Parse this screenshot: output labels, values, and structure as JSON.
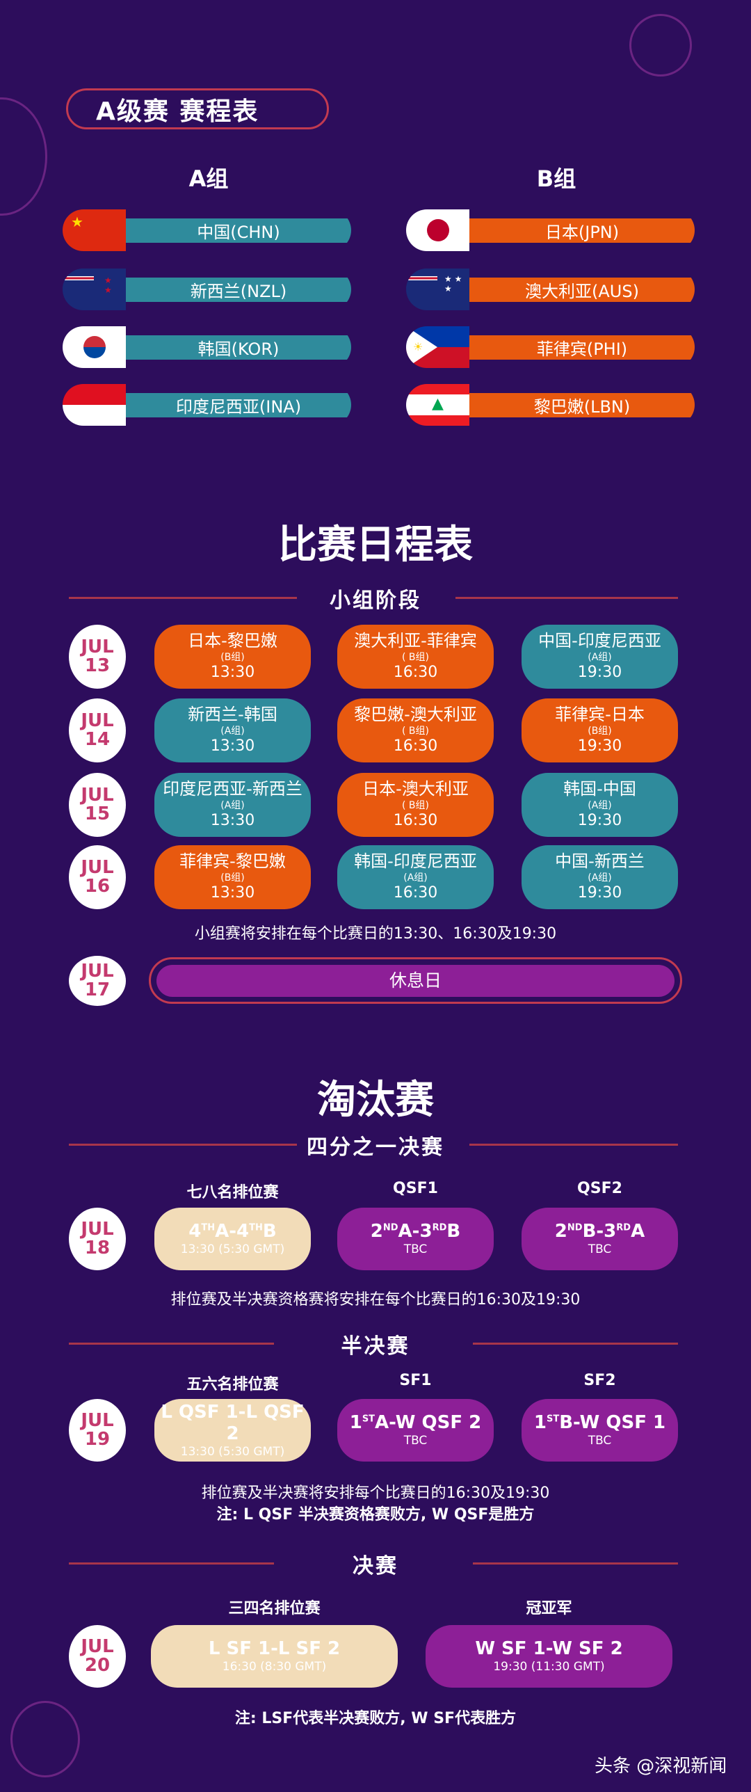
{
  "title": "A级赛 赛程表",
  "groups": {
    "a_label": "A组",
    "b_label": "B组",
    "a": [
      {
        "name": "中国(CHN)",
        "flag": "china-flag"
      },
      {
        "name": "新西兰(NZL)",
        "flag": "new-zealand-flag"
      },
      {
        "name": "韩国(KOR)",
        "flag": "korea-flag"
      },
      {
        "name": "印度尼西亚(INA)",
        "flag": "indonesia-flag"
      }
    ],
    "b": [
      {
        "name": "日本(JPN)",
        "flag": "japan-flag"
      },
      {
        "name": "澳大利亚(AUS)",
        "flag": "australia-flag"
      },
      {
        "name": "菲律宾(PHI)",
        "flag": "philippines-flag"
      },
      {
        "name": "黎巴嫩(LBN)",
        "flag": "lebanon-flag"
      }
    ]
  },
  "schedule_title": "比赛日程表",
  "group_stage": {
    "title": "小组阶段",
    "days": [
      {
        "month": "JUL",
        "day": "13",
        "matches": [
          {
            "teams": "日本-黎巴嫩",
            "group": "(B组)",
            "time": "13:30",
            "color": "orange"
          },
          {
            "teams": "澳大利亚-菲律宾",
            "group": "( B组)",
            "time": "16:30",
            "color": "orange"
          },
          {
            "teams": "中国-印度尼西亚",
            "group": "(A组)",
            "time": "19:30",
            "color": "teal"
          }
        ]
      },
      {
        "month": "JUL",
        "day": "14",
        "matches": [
          {
            "teams": "新西兰-韩国",
            "group": "(A组)",
            "time": "13:30",
            "color": "teal"
          },
          {
            "teams": "黎巴嫩-澳大利亚",
            "group": "( B组)",
            "time": "16:30",
            "color": "orange"
          },
          {
            "teams": "菲律宾-日本",
            "group": "(B组)",
            "time": "19:30",
            "color": "orange"
          }
        ]
      },
      {
        "month": "JUL",
        "day": "15",
        "matches": [
          {
            "teams": "印度尼西亚-新西兰",
            "group": "(A组)",
            "time": "13:30",
            "color": "teal"
          },
          {
            "teams": "日本-澳大利亚",
            "group": "( B组)",
            "time": "16:30",
            "color": "orange"
          },
          {
            "teams": "韩国-中国",
            "group": "(A组)",
            "time": "19:30",
            "color": "teal"
          }
        ]
      },
      {
        "month": "JUL",
        "day": "16",
        "matches": [
          {
            "teams": "菲律宾-黎巴嫩",
            "group": "(B组)",
            "time": "13:30",
            "color": "orange"
          },
          {
            "teams": "韩国-印度尼西亚",
            "group": "(A组)",
            "time": "16:30",
            "color": "teal"
          },
          {
            "teams": "中国-新西兰",
            "group": "(A组)",
            "time": "19:30",
            "color": "teal"
          }
        ]
      }
    ],
    "note": "小组赛将安排在每个比赛日的13:30、16:30及19:30",
    "rest_day": {
      "month": "JUL",
      "day": "17",
      "label": "休息日"
    }
  },
  "knockout_title": "淘汰赛",
  "quarter": {
    "title": "四分之一决赛",
    "month": "JUL",
    "day": "18",
    "matches": [
      {
        "header": "七八名排位赛",
        "parts": [
          "4",
          "TH",
          "A-4",
          "TH",
          "B"
        ],
        "time": "13:30 (5:30 GMT)",
        "color": "beige"
      },
      {
        "header": "QSF1",
        "parts": [
          "2",
          "ND",
          "A-3",
          "RD",
          "B"
        ],
        "time": "TBC",
        "color": "purple"
      },
      {
        "header": "QSF2",
        "parts": [
          "2",
          "ND",
          "B-3",
          "RD",
          "A"
        ],
        "time": "TBC",
        "color": "purple"
      }
    ],
    "note": "排位赛及半决赛资格赛将安排在每个比赛日的16:30及19:30"
  },
  "semi": {
    "title": "半决赛",
    "month": "JUL",
    "day": "19",
    "matches": [
      {
        "header": "五六名排位赛",
        "parts": [
          "L QSF 1-L QSF 2"
        ],
        "time": "13:30 (5:30 GMT)",
        "color": "beige"
      },
      {
        "header": "SF1",
        "parts": [
          "1",
          "ST",
          "A-W QSF 2"
        ],
        "time": "TBC",
        "color": "purple"
      },
      {
        "header": "SF2",
        "parts": [
          "1",
          "ST",
          "B-W QSF 1"
        ],
        "time": "TBC",
        "color": "purple"
      }
    ],
    "note": "排位赛及半决赛将安排每个比赛日的16:30及19:30",
    "note2": "注: L QSF 半决赛资格赛败方, W QSF是胜方"
  },
  "final": {
    "title": "决赛",
    "month": "JUL",
    "day": "20",
    "matches": [
      {
        "header": "三四名排位赛",
        "parts": [
          "L SF 1-L SF 2"
        ],
        "time": "16:30 (8:30 GMT)",
        "color": "beige"
      },
      {
        "header": "冠亚军",
        "parts": [
          "W SF 1-W SF 2"
        ],
        "time": "19:30 (11:30 GMT)",
        "color": "purple"
      }
    ],
    "note": "注: LSF代表半决赛败方, W SF代表胜方"
  },
  "watermark": "头条 @深视新闻"
}
